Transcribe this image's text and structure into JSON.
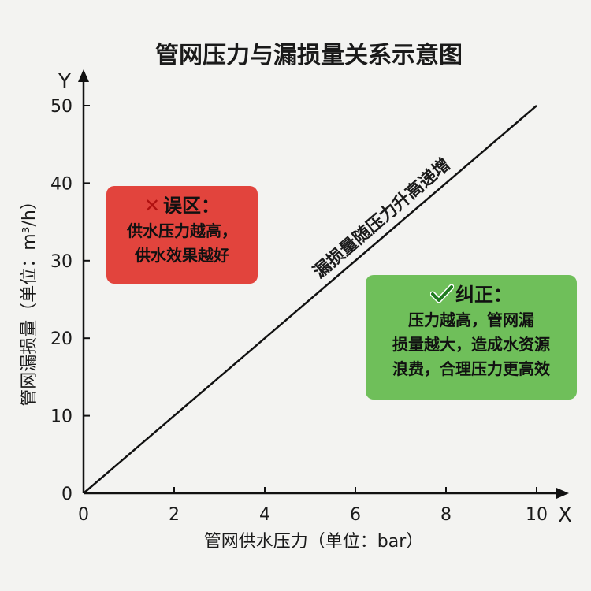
{
  "chart_data": {
    "type": "line",
    "title": "管网压力与漏损量关系示意图",
    "xlabel": "管网供水压力（单位：bar）",
    "ylabel": "管网漏损量（单位：m³/h）",
    "x_axis_letter": "X",
    "y_axis_letter": "Y",
    "xlim": [
      0,
      10
    ],
    "ylim": [
      0,
      50
    ],
    "x_ticks": [
      0,
      2,
      4,
      6,
      8,
      10
    ],
    "y_ticks": [
      0,
      10,
      20,
      30,
      40,
      50
    ],
    "grid": false,
    "series": [
      {
        "label": "漏损量随压力升高递增",
        "x": [
          0,
          10
        ],
        "y": [
          0,
          50
        ],
        "color": "#111111"
      }
    ]
  },
  "notes": {
    "myth": {
      "icon": "cross-icon",
      "heading": "误区：",
      "lines": [
        "供水压力越高，",
        "供水效果越好"
      ],
      "color": "#e2443d"
    },
    "fact": {
      "icon": "check-icon",
      "heading": "纠正：",
      "lines": [
        "压力越高，管网漏",
        "损量越大，造成水资源",
        "浪费，合理压力更高效"
      ],
      "color": "#6fbf5a"
    }
  }
}
